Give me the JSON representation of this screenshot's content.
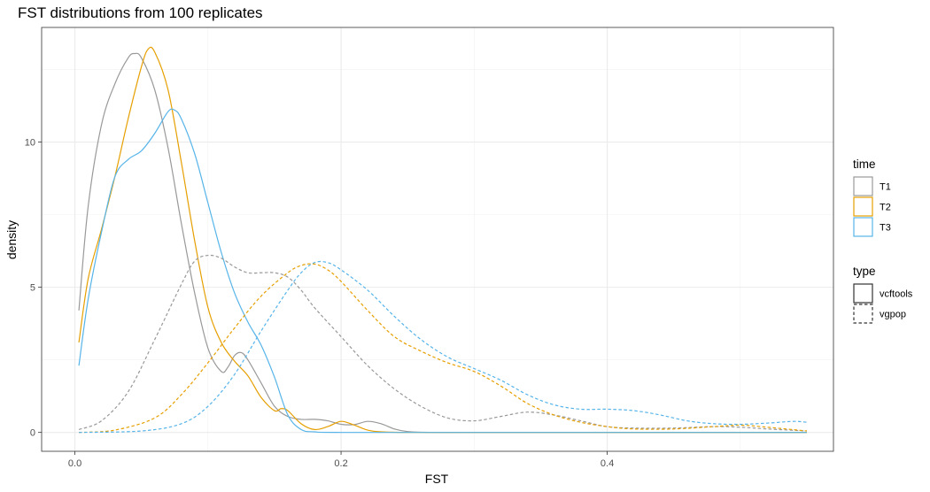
{
  "chart_data": {
    "type": "line",
    "title": "FST distributions from 100 replicates",
    "xlabel": "FST",
    "ylabel": "density",
    "xlim": [
      -0.025,
      0.57
    ],
    "ylim": [
      -0.65,
      13.95
    ],
    "x_ticks": [
      0.0,
      0.2,
      0.4
    ],
    "x_tick_labels": [
      "0.0",
      "0.2",
      "0.4"
    ],
    "x_minor": [
      0.1,
      0.3,
      0.5
    ],
    "y_ticks": [
      0,
      5,
      10
    ],
    "y_tick_labels": [
      "0",
      "5",
      "10"
    ],
    "y_minor": [
      2.5,
      7.5,
      12.5
    ],
    "grid": true,
    "legend_placement": "right",
    "legends": [
      {
        "title": "time",
        "key": "color",
        "entries": [
          {
            "label": "T1",
            "color": "#999999"
          },
          {
            "label": "T2",
            "color": "#E69F00"
          },
          {
            "label": "T3",
            "color": "#56B4E9"
          }
        ]
      },
      {
        "title": "type",
        "key": "linetype",
        "entries": [
          {
            "label": "vcftools",
            "dash": "solid"
          },
          {
            "label": "vgpop",
            "dash": "dashed"
          }
        ]
      }
    ],
    "series": [
      {
        "time": "T1",
        "type": "vcftools",
        "color": "#999999",
        "dash": "solid",
        "points": [
          [
            0.003,
            4.2
          ],
          [
            0.01,
            7.8
          ],
          [
            0.02,
            10.6
          ],
          [
            0.03,
            12.0
          ],
          [
            0.04,
            12.9
          ],
          [
            0.045,
            13.05
          ],
          [
            0.05,
            12.9
          ],
          [
            0.06,
            11.8
          ],
          [
            0.07,
            9.8
          ],
          [
            0.08,
            7.2
          ],
          [
            0.09,
            4.8
          ],
          [
            0.1,
            2.9
          ],
          [
            0.11,
            2.1
          ],
          [
            0.115,
            2.25
          ],
          [
            0.12,
            2.65
          ],
          [
            0.125,
            2.75
          ],
          [
            0.13,
            2.5
          ],
          [
            0.14,
            1.7
          ],
          [
            0.15,
            0.9
          ],
          [
            0.16,
            0.55
          ],
          [
            0.17,
            0.45
          ],
          [
            0.18,
            0.45
          ],
          [
            0.19,
            0.4
          ],
          [
            0.2,
            0.28
          ],
          [
            0.21,
            0.27
          ],
          [
            0.22,
            0.38
          ],
          [
            0.23,
            0.3
          ],
          [
            0.24,
            0.12
          ],
          [
            0.25,
            0.03
          ],
          [
            0.27,
            0.0
          ],
          [
            0.3,
            0.0
          ],
          [
            0.4,
            0.0
          ],
          [
            0.55,
            0.0
          ]
        ]
      },
      {
        "time": "T2",
        "type": "vcftools",
        "color": "#E69F00",
        "dash": "solid",
        "points": [
          [
            0.003,
            3.1
          ],
          [
            0.01,
            5.3
          ],
          [
            0.02,
            7.0
          ],
          [
            0.03,
            8.8
          ],
          [
            0.04,
            10.8
          ],
          [
            0.05,
            12.6
          ],
          [
            0.055,
            13.2
          ],
          [
            0.06,
            13.1
          ],
          [
            0.07,
            11.8
          ],
          [
            0.08,
            9.3
          ],
          [
            0.09,
            6.6
          ],
          [
            0.1,
            4.3
          ],
          [
            0.11,
            3.1
          ],
          [
            0.12,
            2.45
          ],
          [
            0.13,
            1.95
          ],
          [
            0.14,
            1.2
          ],
          [
            0.15,
            0.75
          ],
          [
            0.155,
            0.82
          ],
          [
            0.16,
            0.75
          ],
          [
            0.17,
            0.3
          ],
          [
            0.18,
            0.1
          ],
          [
            0.19,
            0.2
          ],
          [
            0.2,
            0.38
          ],
          [
            0.21,
            0.25
          ],
          [
            0.22,
            0.08
          ],
          [
            0.23,
            0.02
          ],
          [
            0.25,
            0.0
          ],
          [
            0.3,
            0.0
          ],
          [
            0.4,
            0.0
          ],
          [
            0.55,
            0.0
          ]
        ]
      },
      {
        "time": "T3",
        "type": "vcftools",
        "color": "#56B4E9",
        "dash": "solid",
        "points": [
          [
            0.003,
            2.3
          ],
          [
            0.01,
            4.6
          ],
          [
            0.02,
            6.9
          ],
          [
            0.03,
            8.8
          ],
          [
            0.04,
            9.4
          ],
          [
            0.05,
            9.7
          ],
          [
            0.06,
            10.3
          ],
          [
            0.07,
            11.05
          ],
          [
            0.075,
            11.1
          ],
          [
            0.08,
            10.8
          ],
          [
            0.09,
            9.6
          ],
          [
            0.1,
            7.9
          ],
          [
            0.11,
            6.2
          ],
          [
            0.12,
            4.8
          ],
          [
            0.13,
            3.8
          ],
          [
            0.14,
            3.0
          ],
          [
            0.15,
            1.9
          ],
          [
            0.16,
            0.6
          ],
          [
            0.17,
            0.1
          ],
          [
            0.18,
            0.02
          ],
          [
            0.2,
            0.0
          ],
          [
            0.3,
            0.0
          ],
          [
            0.4,
            0.0
          ],
          [
            0.55,
            0.0
          ]
        ]
      },
      {
        "time": "T1",
        "type": "vgpop",
        "color": "#999999",
        "dash": "dashed",
        "points": [
          [
            0.003,
            0.1
          ],
          [
            0.02,
            0.4
          ],
          [
            0.04,
            1.4
          ],
          [
            0.06,
            3.2
          ],
          [
            0.08,
            5.1
          ],
          [
            0.09,
            5.9
          ],
          [
            0.1,
            6.1
          ],
          [
            0.11,
            6.0
          ],
          [
            0.12,
            5.7
          ],
          [
            0.13,
            5.5
          ],
          [
            0.14,
            5.5
          ],
          [
            0.15,
            5.5
          ],
          [
            0.16,
            5.35
          ],
          [
            0.17,
            4.9
          ],
          [
            0.18,
            4.3
          ],
          [
            0.2,
            3.3
          ],
          [
            0.22,
            2.3
          ],
          [
            0.24,
            1.5
          ],
          [
            0.26,
            0.9
          ],
          [
            0.28,
            0.5
          ],
          [
            0.3,
            0.4
          ],
          [
            0.32,
            0.55
          ],
          [
            0.34,
            0.7
          ],
          [
            0.36,
            0.6
          ],
          [
            0.38,
            0.4
          ],
          [
            0.4,
            0.2
          ],
          [
            0.42,
            0.15
          ],
          [
            0.45,
            0.15
          ],
          [
            0.48,
            0.2
          ],
          [
            0.5,
            0.18
          ],
          [
            0.52,
            0.12
          ],
          [
            0.55,
            0.05
          ]
        ]
      },
      {
        "time": "T2",
        "type": "vgpop",
        "color": "#E69F00",
        "dash": "dashed",
        "points": [
          [
            0.003,
            0.0
          ],
          [
            0.03,
            0.08
          ],
          [
            0.06,
            0.5
          ],
          [
            0.08,
            1.3
          ],
          [
            0.1,
            2.4
          ],
          [
            0.12,
            3.6
          ],
          [
            0.14,
            4.7
          ],
          [
            0.16,
            5.5
          ],
          [
            0.17,
            5.75
          ],
          [
            0.18,
            5.8
          ],
          [
            0.19,
            5.6
          ],
          [
            0.2,
            5.2
          ],
          [
            0.22,
            4.2
          ],
          [
            0.24,
            3.3
          ],
          [
            0.26,
            2.8
          ],
          [
            0.28,
            2.4
          ],
          [
            0.3,
            2.1
          ],
          [
            0.32,
            1.6
          ],
          [
            0.34,
            1.0
          ],
          [
            0.36,
            0.6
          ],
          [
            0.38,
            0.35
          ],
          [
            0.4,
            0.2
          ],
          [
            0.42,
            0.12
          ],
          [
            0.45,
            0.12
          ],
          [
            0.48,
            0.2
          ],
          [
            0.5,
            0.25
          ],
          [
            0.52,
            0.18
          ],
          [
            0.55,
            0.05
          ]
        ]
      },
      {
        "time": "T3",
        "type": "vgpop",
        "color": "#56B4E9",
        "dash": "dashed",
        "points": [
          [
            0.003,
            0.0
          ],
          [
            0.05,
            0.05
          ],
          [
            0.08,
            0.3
          ],
          [
            0.1,
            0.9
          ],
          [
            0.12,
            2.0
          ],
          [
            0.14,
            3.5
          ],
          [
            0.16,
            4.9
          ],
          [
            0.17,
            5.5
          ],
          [
            0.18,
            5.85
          ],
          [
            0.19,
            5.85
          ],
          [
            0.2,
            5.6
          ],
          [
            0.22,
            4.9
          ],
          [
            0.24,
            4.0
          ],
          [
            0.26,
            3.2
          ],
          [
            0.28,
            2.6
          ],
          [
            0.3,
            2.2
          ],
          [
            0.32,
            1.8
          ],
          [
            0.34,
            1.3
          ],
          [
            0.36,
            0.95
          ],
          [
            0.38,
            0.8
          ],
          [
            0.4,
            0.8
          ],
          [
            0.42,
            0.75
          ],
          [
            0.44,
            0.6
          ],
          [
            0.46,
            0.4
          ],
          [
            0.48,
            0.3
          ],
          [
            0.5,
            0.28
          ],
          [
            0.52,
            0.32
          ],
          [
            0.54,
            0.38
          ],
          [
            0.55,
            0.35
          ]
        ]
      }
    ]
  }
}
